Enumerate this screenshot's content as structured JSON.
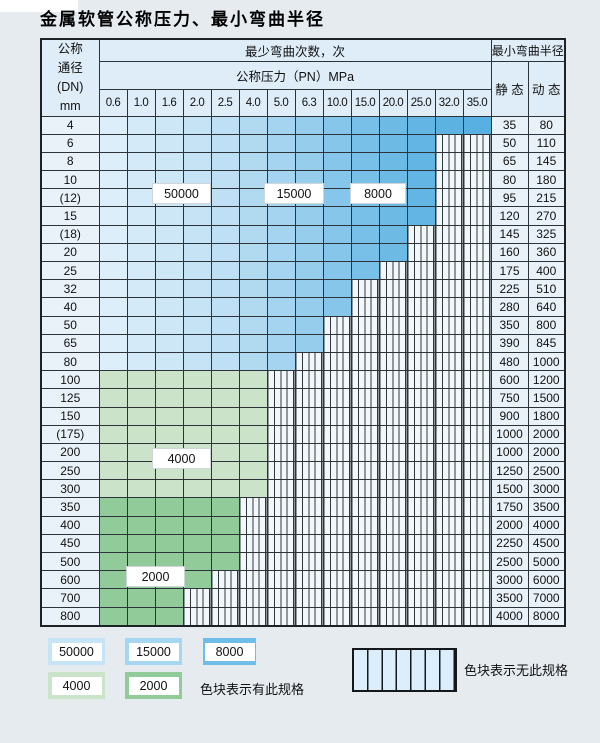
{
  "title": "金属软管公称压力、最小弯曲半径",
  "header": {
    "dn_label": "公称\n通径\n(DN)\nmm",
    "cycles_title": "最少弯曲次数，次",
    "pressure_title": "公称压力（PN）MPa",
    "radius_title": "最小弯曲半径",
    "static_label": "静 态",
    "dynamic_label": "动 态"
  },
  "table": {
    "pressure_columns": [
      "0.6",
      "1.0",
      "1.6",
      "2.0",
      "2.5",
      "4.0",
      "5.0",
      "6.3",
      "10.0",
      "15.0",
      "20.0",
      "25.0",
      "32.0",
      "35.0"
    ],
    "blue_shades": [
      "#dbeefa",
      "#d4eaf8",
      "#cde7f7",
      "#c6e3f5",
      "#bfdff4",
      "#b1daf1",
      "#a4d4ef",
      "#97cdec",
      "#86c6ea",
      "#78c0e7",
      "#6dbbe5",
      "#63b6e3",
      "#5cb3e2",
      "#57b0e1"
    ],
    "green_4000": "#cbe4c9",
    "green_2000": "#92cb9a",
    "rows": [
      {
        "dn": "4",
        "zone": "blue",
        "last_col": 13,
        "static": "35",
        "dynamic": "80"
      },
      {
        "dn": "6",
        "zone": "blue",
        "last_col": 11,
        "static": "50",
        "dynamic": "110"
      },
      {
        "dn": "8",
        "zone": "blue",
        "last_col": 11,
        "static": "65",
        "dynamic": "145"
      },
      {
        "dn": "10",
        "zone": "blue",
        "last_col": 11,
        "static": "80",
        "dynamic": "180"
      },
      {
        "dn": "(12)",
        "zone": "blue",
        "last_col": 11,
        "static": "95",
        "dynamic": "215"
      },
      {
        "dn": "15",
        "zone": "blue",
        "last_col": 11,
        "static": "120",
        "dynamic": "270"
      },
      {
        "dn": "(18)",
        "zone": "blue",
        "last_col": 10,
        "static": "145",
        "dynamic": "325"
      },
      {
        "dn": "20",
        "zone": "blue",
        "last_col": 10,
        "static": "160",
        "dynamic": "360"
      },
      {
        "dn": "25",
        "zone": "blue",
        "last_col": 9,
        "static": "175",
        "dynamic": "400"
      },
      {
        "dn": "32",
        "zone": "blue",
        "last_col": 8,
        "static": "225",
        "dynamic": "510"
      },
      {
        "dn": "40",
        "zone": "blue",
        "last_col": 8,
        "static": "280",
        "dynamic": "640"
      },
      {
        "dn": "50",
        "zone": "blue",
        "last_col": 7,
        "static": "350",
        "dynamic": "800"
      },
      {
        "dn": "65",
        "zone": "blue",
        "last_col": 7,
        "static": "390",
        "dynamic": "845"
      },
      {
        "dn": "80",
        "zone": "blue",
        "last_col": 6,
        "static": "480",
        "dynamic": "1000"
      },
      {
        "dn": "100",
        "zone": "green4",
        "last_col": 5,
        "static": "600",
        "dynamic": "1200"
      },
      {
        "dn": "125",
        "zone": "green4",
        "last_col": 5,
        "static": "750",
        "dynamic": "1500"
      },
      {
        "dn": "150",
        "zone": "green4",
        "last_col": 5,
        "static": "900",
        "dynamic": "1800"
      },
      {
        "dn": "(175)",
        "zone": "green4",
        "last_col": 5,
        "static": "1000",
        "dynamic": "2000"
      },
      {
        "dn": "200",
        "zone": "green4",
        "last_col": 5,
        "static": "1000",
        "dynamic": "2000"
      },
      {
        "dn": "250",
        "zone": "green4",
        "last_col": 5,
        "static": "1250",
        "dynamic": "2500"
      },
      {
        "dn": "300",
        "zone": "green4",
        "last_col": 5,
        "static": "1500",
        "dynamic": "3000"
      },
      {
        "dn": "350",
        "zone": "green2",
        "last_col": 4,
        "static": "1750",
        "dynamic": "3500"
      },
      {
        "dn": "400",
        "zone": "green2",
        "last_col": 4,
        "static": "2000",
        "dynamic": "4000"
      },
      {
        "dn": "450",
        "zone": "green2",
        "last_col": 4,
        "static": "2250",
        "dynamic": "4500"
      },
      {
        "dn": "500",
        "zone": "green2",
        "last_col": 4,
        "static": "2500",
        "dynamic": "5000"
      },
      {
        "dn": "600",
        "zone": "green2",
        "last_col": 3,
        "static": "3000",
        "dynamic": "6000"
      },
      {
        "dn": "700",
        "zone": "green2",
        "last_col": 2,
        "static": "3500",
        "dynamic": "7000"
      },
      {
        "dn": "800",
        "zone": "green2",
        "last_col": 2,
        "static": "4000",
        "dynamic": "8000"
      }
    ]
  },
  "in_table_labels": {
    "c50000": "50000",
    "c15000": "15000",
    "c8000": "8000",
    "c4000": "4000",
    "c2000": "2000"
  },
  "legend": {
    "chips": [
      {
        "label": "50000",
        "color": "#c7e4f7"
      },
      {
        "label": "15000",
        "color": "#a6d6f1"
      },
      {
        "label": "8000",
        "color": "#6fbde8"
      },
      {
        "label": "4000",
        "color": "#cbe4c9"
      },
      {
        "label": "2000",
        "color": "#92cb9a"
      }
    ],
    "has_spec_text": "色块表示有此规格",
    "no_spec_text": "色块表示无此规格"
  }
}
